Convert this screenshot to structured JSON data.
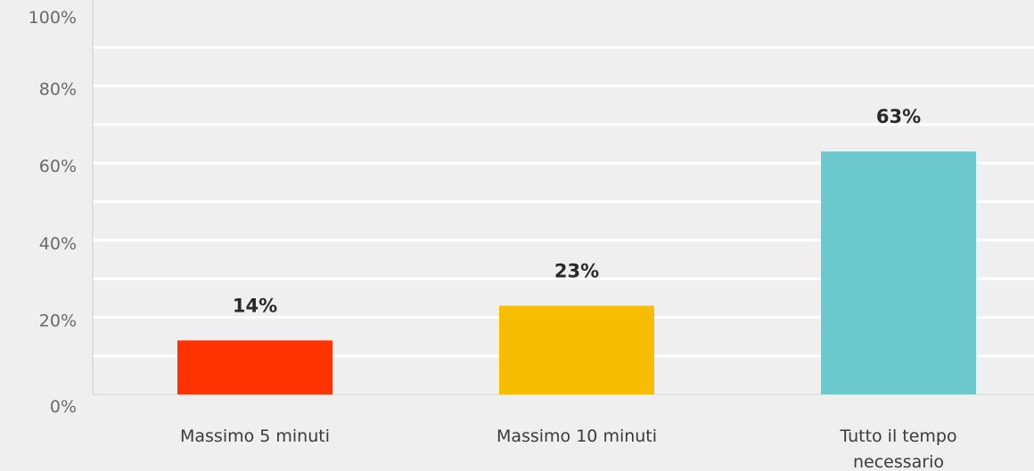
{
  "chart_data": {
    "type": "bar",
    "categories": [
      [
        "Massimo 5 minuti"
      ],
      [
        "Massimo 10 minuti"
      ],
      [
        "Tutto il tempo",
        "necessario"
      ]
    ],
    "values": [
      14,
      23,
      63
    ],
    "data_labels": [
      "14%",
      "23%",
      "63%"
    ],
    "colors": [
      "#ff3300",
      "#f7bd00",
      "#6bc8cc"
    ],
    "ylim": [
      0,
      100
    ],
    "y_ticks": [
      0,
      20,
      40,
      60,
      80,
      100
    ],
    "y_tick_labels": [
      "0%",
      "20%",
      "40%",
      "60%",
      "80%",
      "100%"
    ],
    "grid": true,
    "grid_minor_step": 10,
    "legend": "none",
    "title": "",
    "xlabel": "",
    "ylabel": ""
  }
}
